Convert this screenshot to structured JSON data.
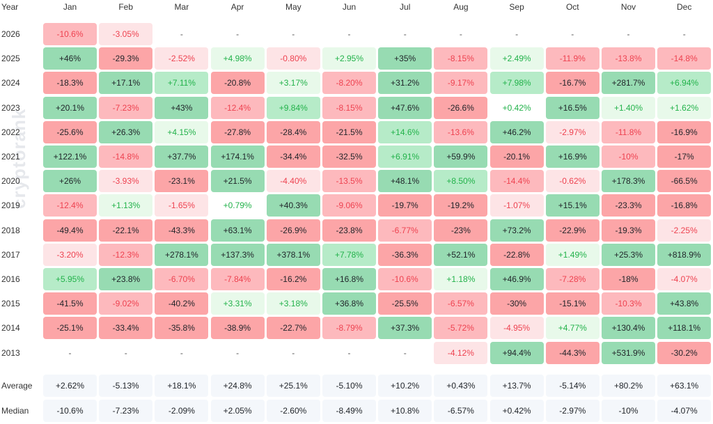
{
  "watermark": "cryptorank",
  "colors": {
    "pos_light": "#e8f9ea",
    "pos_mid": "#b6ebc8",
    "pos_strong": "#97dbb2",
    "neg_light": "#fde4e6",
    "neg_mid": "#fdb9bd",
    "neg_strong": "#fca5a7",
    "pos_text": "#22b24a",
    "neg_text": "#ee4250",
    "dark_text": "#1f2328",
    "summary_bg": "#f4f7fb"
  },
  "chart_data": {
    "type": "heatmap",
    "corner_label": "Year",
    "columns": [
      "Jan",
      "Feb",
      "Mar",
      "Apr",
      "May",
      "Jun",
      "Jul",
      "Aug",
      "Sep",
      "Oct",
      "Nov",
      "Dec"
    ],
    "rows": [
      {
        "year": "2026",
        "values": [
          "-10.6%",
          "-3.05%",
          "-",
          "-",
          "-",
          "-",
          "-",
          "-",
          "-",
          "-",
          "-",
          "-"
        ]
      },
      {
        "year": "2025",
        "values": [
          "+46%",
          "-29.3%",
          "-2.52%",
          "+4.98%",
          "-0.80%",
          "+2.95%",
          "+35%",
          "-8.15%",
          "+2.49%",
          "-11.9%",
          "-13.8%",
          "-14.8%"
        ]
      },
      {
        "year": "2024",
        "values": [
          "-18.3%",
          "+17.1%",
          "+7.11%",
          "-20.8%",
          "+3.17%",
          "-8.20%",
          "+31.2%",
          "-9.17%",
          "+7.98%",
          "-16.7%",
          "+281.7%",
          "+6.94%"
        ]
      },
      {
        "year": "2023",
        "values": [
          "+20.1%",
          "-7.23%",
          "+43%",
          "-12.4%",
          "+9.84%",
          "-8.15%",
          "+47.6%",
          "-26.6%",
          "+0.42%",
          "+16.5%",
          "+1.40%",
          "+1.62%"
        ]
      },
      {
        "year": "2022",
        "values": [
          "-25.6%",
          "+26.3%",
          "+4.15%",
          "-27.8%",
          "-28.4%",
          "-21.5%",
          "+14.6%",
          "-13.6%",
          "+46.2%",
          "-2.97%",
          "-11.8%",
          "-16.9%"
        ]
      },
      {
        "year": "2021",
        "values": [
          "+122.1%",
          "-14.8%",
          "+37.7%",
          "+174.1%",
          "-34.4%",
          "-32.5%",
          "+6.91%",
          "+59.9%",
          "-20.1%",
          "+16.9%",
          "-10%",
          "-17%"
        ]
      },
      {
        "year": "2020",
        "values": [
          "+26%",
          "-3.93%",
          "-23.1%",
          "+21.5%",
          "-4.40%",
          "-13.5%",
          "+48.1%",
          "+8.50%",
          "-14.4%",
          "-0.62%",
          "+178.3%",
          "-66.5%"
        ]
      },
      {
        "year": "2019",
        "values": [
          "-12.4%",
          "+1.13%",
          "-1.65%",
          "+0.79%",
          "+40.3%",
          "-9.06%",
          "-19.7%",
          "-19.2%",
          "-1.07%",
          "+15.1%",
          "-23.3%",
          "-16.8%"
        ]
      },
      {
        "year": "2018",
        "values": [
          "-49.4%",
          "-22.1%",
          "-43.3%",
          "+63.1%",
          "-26.9%",
          "-23.8%",
          "-6.77%",
          "-23%",
          "+73.2%",
          "-22.9%",
          "-19.3%",
          "-2.25%"
        ]
      },
      {
        "year": "2017",
        "values": [
          "-3.20%",
          "-12.3%",
          "+278.1%",
          "+137.3%",
          "+378.1%",
          "+7.78%",
          "-36.3%",
          "+52.1%",
          "-22.8%",
          "+1.49%",
          "+25.3%",
          "+818.9%"
        ]
      },
      {
        "year": "2016",
        "values": [
          "+5.95%",
          "+23.8%",
          "-6.70%",
          "-7.84%",
          "-16.2%",
          "+16.8%",
          "-10.6%",
          "+1.18%",
          "+46.9%",
          "-7.28%",
          "-18%",
          "-4.07%"
        ]
      },
      {
        "year": "2015",
        "values": [
          "-41.5%",
          "-9.02%",
          "-40.2%",
          "+3.31%",
          "+3.18%",
          "+36.8%",
          "-25.5%",
          "-6.57%",
          "-30%",
          "-15.1%",
          "-10.3%",
          "+43.8%"
        ]
      },
      {
        "year": "2014",
        "values": [
          "-25.1%",
          "-33.4%",
          "-35.8%",
          "-38.9%",
          "-22.7%",
          "-8.79%",
          "+37.3%",
          "-5.72%",
          "-4.95%",
          "+4.77%",
          "+130.4%",
          "+118.1%"
        ]
      },
      {
        "year": "2013",
        "values": [
          "-",
          "-",
          "-",
          "-",
          "-",
          "-",
          "-",
          "-4.12%",
          "+94.4%",
          "-44.3%",
          "+531.9%",
          "-30.2%"
        ]
      }
    ],
    "summary": [
      {
        "label": "Average",
        "values": [
          "+2.62%",
          "-5.13%",
          "+18.1%",
          "+24.8%",
          "+25.1%",
          "-5.10%",
          "+10.2%",
          "+0.43%",
          "+13.7%",
          "-5.14%",
          "+80.2%",
          "+63.1%"
        ]
      },
      {
        "label": "Median",
        "values": [
          "-10.6%",
          "-7.23%",
          "-2.09%",
          "+2.05%",
          "-2.60%",
          "-8.49%",
          "+10.8%",
          "-6.57%",
          "+0.42%",
          "-2.97%",
          "-10%",
          "-4.07%"
        ]
      }
    ]
  }
}
